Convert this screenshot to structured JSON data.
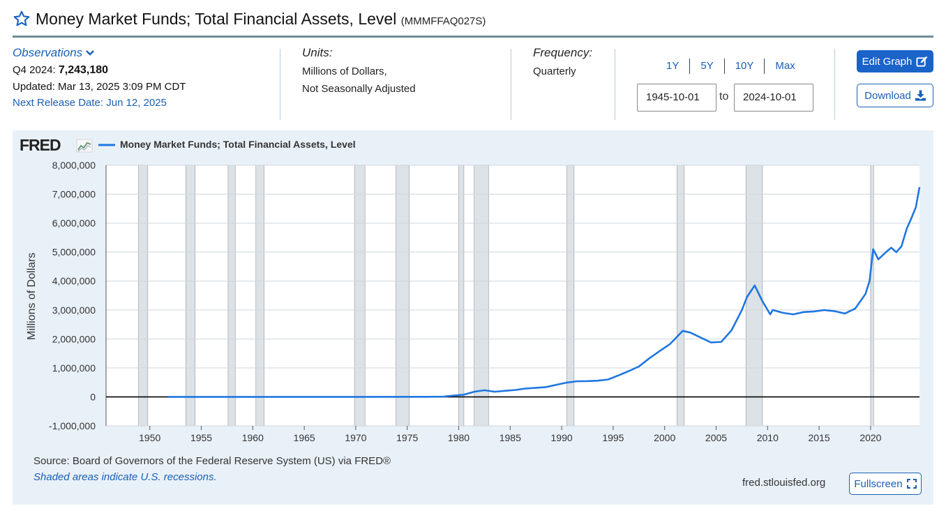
{
  "header": {
    "title": "Money Market Funds; Total Financial Assets, Level",
    "series_id": "(MMMFFAQ027S)"
  },
  "observations": {
    "label": "Observations",
    "period_label": "Q4 2024:",
    "value": "7,243,180",
    "updated": "Updated: Mar 13, 2025 3:09 PM CDT",
    "next_release": "Next Release Date: Jun 12, 2025"
  },
  "units": {
    "label": "Units:",
    "line1": "Millions of Dollars,",
    "line2": "Not Seasonally Adjusted"
  },
  "frequency": {
    "label": "Frequency:",
    "value": "Quarterly"
  },
  "range": {
    "buttons": [
      "1Y",
      "5Y",
      "10Y",
      "Max"
    ],
    "start": "1945-10-01",
    "to_label": "to",
    "end": "2024-10-01"
  },
  "actions": {
    "edit_graph": "Edit Graph",
    "download": "Download",
    "fullscreen": "Fullscreen"
  },
  "footer": {
    "source": "Source: Board of Governors of the Federal Reserve System (US) via FRED®",
    "recession_note": "Shaded areas indicate U.S. recessions.",
    "site": "fred.stlouisfed.org"
  },
  "colors": {
    "series_line": "#1f77e0",
    "accent": "#1a63c9",
    "recession": "#dde2e6",
    "plot_background": "#ffffff",
    "panel_background": "#e9f1f8"
  },
  "chart_data": {
    "type": "line",
    "logo": "FRED",
    "ylabel": "Millions of Dollars",
    "xlabel": "",
    "xlim": [
      1945.75,
      2024.75
    ],
    "ylim": [
      -1000000,
      8000000
    ],
    "yticks": [
      -1000000,
      0,
      1000000,
      2000000,
      3000000,
      4000000,
      5000000,
      6000000,
      7000000,
      8000000
    ],
    "ytick_labels": [
      "-1,000,000",
      "0",
      "1,000,000",
      "2,000,000",
      "3,000,000",
      "4,000,000",
      "5,000,000",
      "6,000,000",
      "7,000,000",
      "8,000,000"
    ],
    "xticks": [
      1950,
      1955,
      1960,
      1965,
      1970,
      1975,
      1980,
      1985,
      1990,
      1995,
      2000,
      2005,
      2010,
      2015,
      2020
    ],
    "xtick_labels": [
      "1950",
      "1955",
      "1960",
      "1965",
      "1970",
      "1975",
      "1980",
      "1985",
      "1990",
      "1995",
      "2000",
      "2005",
      "2010",
      "2015",
      "2020"
    ],
    "grid": true,
    "legend_position": "top-left",
    "zero_line": true,
    "recessions": [
      [
        1948.9,
        1949.8
      ],
      [
        1953.5,
        1954.4
      ],
      [
        1957.6,
        1958.3
      ],
      [
        1960.3,
        1961.1
      ],
      [
        1969.9,
        1970.9
      ],
      [
        1973.9,
        1975.2
      ],
      [
        1980.0,
        1980.5
      ],
      [
        1981.5,
        1982.9
      ],
      [
        1990.5,
        1991.2
      ],
      [
        2001.2,
        2001.9
      ],
      [
        2007.9,
        2009.5
      ],
      [
        2020.0,
        2020.3
      ]
    ],
    "series": [
      {
        "name": "Money Market Funds; Total Financial Assets, Level",
        "points": [
          [
            1951.75,
            0
          ],
          [
            1960,
            0
          ],
          [
            1970,
            0
          ],
          [
            1975,
            3000
          ],
          [
            1977,
            4000
          ],
          [
            1978.5,
            10000
          ],
          [
            1979.5,
            45000
          ],
          [
            1980.5,
            76000
          ],
          [
            1981.5,
            180000
          ],
          [
            1982.5,
            230000
          ],
          [
            1983.5,
            180000
          ],
          [
            1984.5,
            210000
          ],
          [
            1985.5,
            240000
          ],
          [
            1986.5,
            290000
          ],
          [
            1987.5,
            315000
          ],
          [
            1988.5,
            340000
          ],
          [
            1989.5,
            420000
          ],
          [
            1990.5,
            495000
          ],
          [
            1991.5,
            540000
          ],
          [
            1992.5,
            545000
          ],
          [
            1993.5,
            560000
          ],
          [
            1994.5,
            600000
          ],
          [
            1995.5,
            740000
          ],
          [
            1996.5,
            890000
          ],
          [
            1997.5,
            1050000
          ],
          [
            1998.5,
            1330000
          ],
          [
            1999.5,
            1580000
          ],
          [
            2000.5,
            1820000
          ],
          [
            2001,
            2000000
          ],
          [
            2001.75,
            2280000
          ],
          [
            2002.5,
            2220000
          ],
          [
            2003.5,
            2050000
          ],
          [
            2004.5,
            1880000
          ],
          [
            2005.5,
            1900000
          ],
          [
            2006.5,
            2300000
          ],
          [
            2007.5,
            3000000
          ],
          [
            2008,
            3450000
          ],
          [
            2008.75,
            3850000
          ],
          [
            2009.5,
            3300000
          ],
          [
            2010.25,
            2850000
          ],
          [
            2010.5,
            3000000
          ],
          [
            2011.5,
            2900000
          ],
          [
            2012.5,
            2850000
          ],
          [
            2013.5,
            2930000
          ],
          [
            2014.5,
            2950000
          ],
          [
            2015.5,
            3000000
          ],
          [
            2016.5,
            2960000
          ],
          [
            2017.5,
            2880000
          ],
          [
            2018.5,
            3050000
          ],
          [
            2019.5,
            3550000
          ],
          [
            2019.9,
            4000000
          ],
          [
            2020.25,
            5100000
          ],
          [
            2020.75,
            4750000
          ],
          [
            2021.5,
            5000000
          ],
          [
            2022,
            5150000
          ],
          [
            2022.5,
            5000000
          ],
          [
            2023,
            5200000
          ],
          [
            2023.5,
            5800000
          ],
          [
            2024,
            6200000
          ],
          [
            2024.4,
            6550000
          ],
          [
            2024.75,
            7243180
          ]
        ]
      }
    ]
  }
}
